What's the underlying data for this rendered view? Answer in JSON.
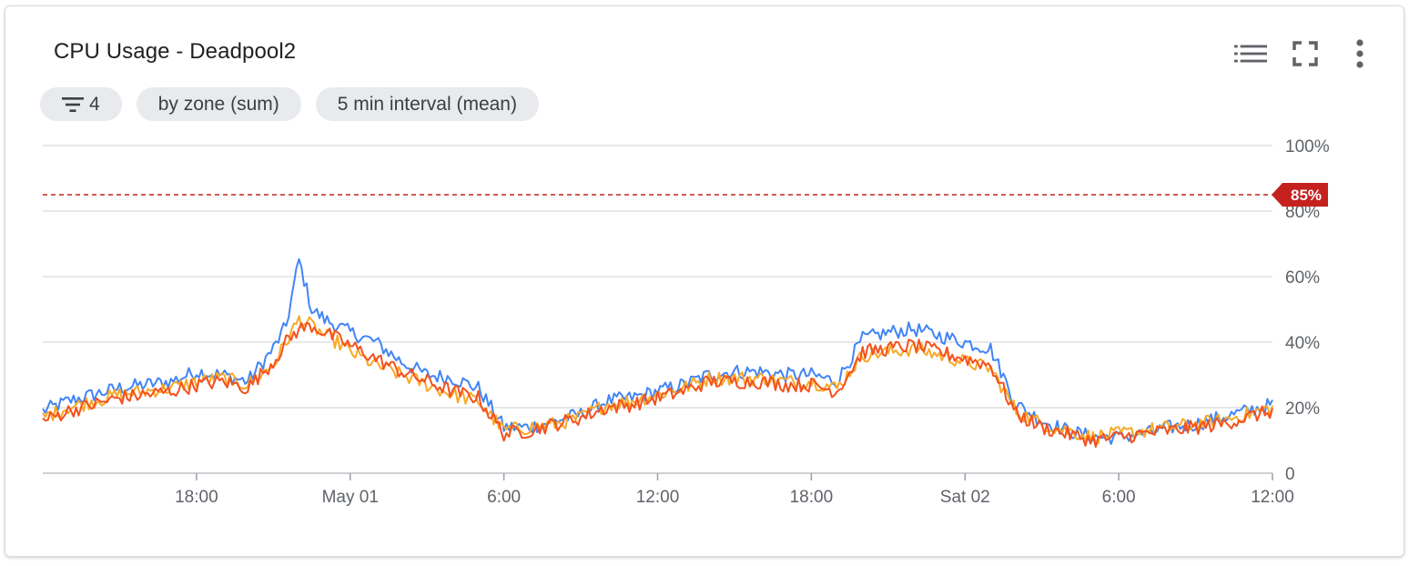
{
  "widget": {
    "title": "CPU Usage - Deadpool2",
    "filter_count": "4",
    "chips": [
      "by zone (sum)",
      "5 min interval (mean)"
    ],
    "icons": [
      "legend-list-icon",
      "fullscreen-icon",
      "more-vert-icon",
      "filter-icon"
    ]
  },
  "chart_data": {
    "type": "line",
    "title": "CPU Usage - Deadpool2",
    "xlabel": "",
    "ylabel": "",
    "x_ticks": [
      "18:00",
      "May 01",
      "6:00",
      "12:00",
      "18:00",
      "Sat 02",
      "6:00",
      "12:00"
    ],
    "x_tick_hours": [
      6,
      12,
      18,
      24,
      30,
      36,
      42,
      48
    ],
    "x_range_hours": [
      0,
      48
    ],
    "y_ticks": [
      "0",
      "20%",
      "40%",
      "60%",
      "80%",
      "100%"
    ],
    "y_tick_values": [
      0,
      20,
      40,
      60,
      80,
      100
    ],
    "ylim": [
      0,
      100
    ],
    "grid": true,
    "threshold": {
      "value": 85,
      "label": "85%",
      "color": "#c5221f",
      "style": "dashed"
    },
    "series": [
      {
        "color": "#4285f4",
        "x": [
          0,
          1,
          2,
          3,
          4,
          5,
          6,
          7,
          8,
          9,
          9.5,
          10,
          10.5,
          11,
          11.5,
          12,
          13,
          14,
          15,
          16,
          17,
          18,
          19,
          20,
          21,
          22,
          23,
          24,
          25,
          26,
          27,
          28,
          29,
          30,
          31,
          32,
          33,
          34,
          35,
          36,
          37,
          38,
          39,
          40,
          41,
          42,
          43,
          44,
          45,
          46,
          47,
          48
        ],
        "y": [
          19,
          22,
          24,
          26,
          27,
          28,
          31,
          30,
          28,
          38,
          45,
          65,
          50,
          47,
          45,
          43,
          40,
          34,
          30,
          29,
          26,
          14,
          14,
          16,
          18,
          22,
          23,
          25,
          27,
          30,
          31,
          31,
          30,
          30,
          28,
          41,
          43,
          44,
          42,
          40,
          38,
          21,
          16,
          13,
          11,
          11,
          12,
          14,
          15,
          17,
          19,
          21
        ]
      },
      {
        "color": "#f9a825",
        "x": [
          0,
          1,
          2,
          3,
          4,
          5,
          6,
          7,
          8,
          9,
          9.5,
          10,
          10.5,
          11,
          11.5,
          12,
          13,
          14,
          15,
          16,
          17,
          18,
          19,
          20,
          21,
          22,
          23,
          24,
          25,
          26,
          27,
          28,
          29,
          30,
          31,
          32,
          33,
          34,
          35,
          36,
          37,
          38,
          39,
          40,
          41,
          42,
          43,
          44,
          45,
          46,
          47,
          48
        ],
        "y": [
          17,
          20,
          22,
          24,
          25,
          26,
          28,
          29,
          27,
          33,
          40,
          47,
          45,
          42,
          40,
          37,
          33,
          30,
          27,
          24,
          22,
          13,
          14,
          15,
          17,
          21,
          22,
          24,
          26,
          29,
          29,
          29,
          28,
          28,
          26,
          36,
          37,
          38,
          36,
          34,
          32,
          19,
          15,
          13,
          11,
          12,
          13,
          14,
          15,
          16,
          18,
          20
        ]
      },
      {
        "color": "#f4511e",
        "x": [
          0,
          1,
          2,
          3,
          4,
          5,
          6,
          7,
          8,
          9,
          9.5,
          10,
          10.5,
          11,
          11.5,
          12,
          13,
          14,
          15,
          16,
          17,
          18,
          19,
          20,
          21,
          22,
          23,
          24,
          25,
          26,
          27,
          28,
          29,
          30,
          31,
          32,
          33,
          34,
          35,
          36,
          37,
          38,
          39,
          40,
          41,
          42,
          43,
          44,
          45,
          46,
          47,
          48
        ],
        "y": [
          16,
          19,
          21,
          23,
          24,
          25,
          27,
          28,
          26,
          34,
          40,
          44,
          45,
          43,
          41,
          39,
          35,
          31,
          28,
          25,
          23,
          12,
          13,
          15,
          17,
          20,
          21,
          23,
          25,
          28,
          28,
          28,
          27,
          27,
          25,
          37,
          38,
          39,
          37,
          35,
          33,
          18,
          14,
          12,
          10,
          11,
          12,
          13,
          14,
          15,
          17,
          19
        ]
      }
    ]
  }
}
